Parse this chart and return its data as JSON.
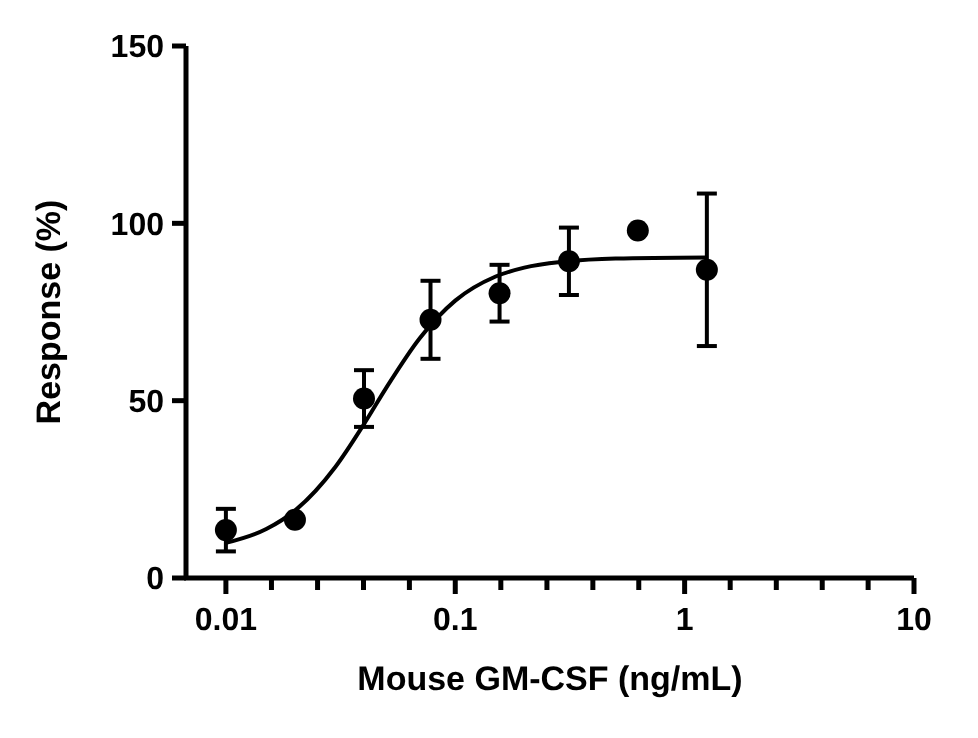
{
  "chart_data": {
    "type": "scatter",
    "xlabel": "Mouse GM-CSF (ng/mL)",
    "ylabel": "Response (%)",
    "log": "x",
    "xlim": [
      0.0067,
      10
    ],
    "ylim": [
      0,
      150
    ],
    "xticks": [
      0.01,
      {
        "value": 0.0158,
        "label": null
      },
      {
        "value": 0.0251,
        "label": null
      },
      {
        "value": 0.0398,
        "label": null
      },
      {
        "value": 0.0631,
        "label": null
      },
      0.1,
      {
        "value": 0.158,
        "label": null
      },
      {
        "value": 0.251,
        "label": null
      },
      {
        "value": 0.398,
        "label": null
      },
      {
        "value": 0.631,
        "label": null
      },
      1,
      {
        "value": 1.58,
        "label": null
      },
      {
        "value": 2.51,
        "label": null
      },
      {
        "value": 3.98,
        "label": null
      },
      {
        "value": 6.31,
        "label": null
      },
      10
    ],
    "yticks": [
      0,
      50,
      100,
      150
    ],
    "grid": false,
    "series": [
      {
        "color": "#000000",
        "marker": "circle",
        "x": [
          0.01,
          0.02,
          0.04,
          0.078,
          0.156,
          0.313,
          0.625,
          1.25
        ],
        "values": [
          13.5,
          16.4,
          50.6,
          72.8,
          80.3,
          89.3,
          98,
          86.9
        ],
        "errors": [
          6,
          null,
          8,
          11,
          8,
          9.5,
          null,
          21.5
        ]
      },
      {
        "type": "line",
        "marker": "none",
        "color": "#000000",
        "x": [
          0.01,
          0.015,
          0.02,
          0.03,
          0.04,
          0.05,
          0.07,
          0.1,
          0.15,
          0.2,
          0.3,
          0.5,
          1.25
        ],
        "values": [
          9.9,
          13.8,
          19,
          31.3,
          43.4,
          53.6,
          67.6,
          78.2,
          85,
          87.5,
          89.2,
          90.1,
          90.4
        ]
      }
    ]
  }
}
